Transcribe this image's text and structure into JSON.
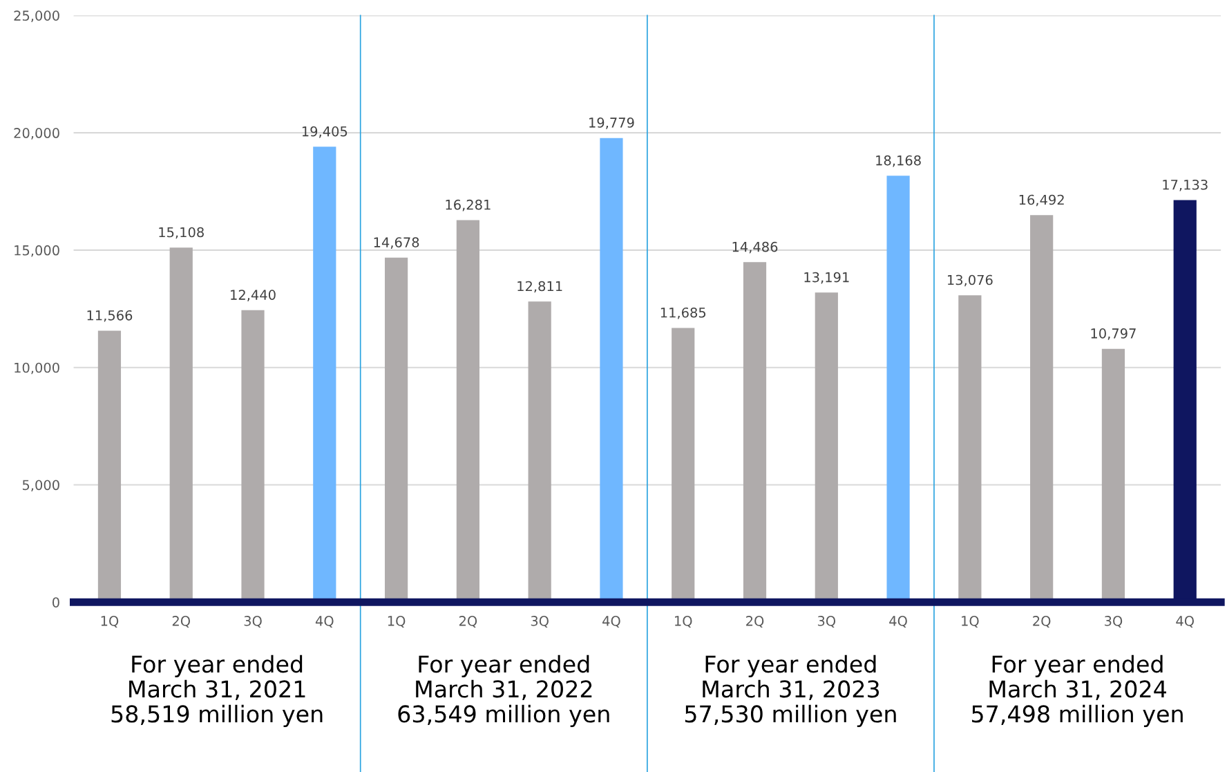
{
  "chart_data": {
    "type": "bar",
    "categories": [
      "1Q",
      "2Q",
      "3Q",
      "4Q",
      "1Q",
      "2Q",
      "3Q",
      "4Q",
      "1Q",
      "2Q",
      "3Q",
      "4Q",
      "1Q",
      "2Q",
      "3Q",
      "4Q"
    ],
    "values": [
      11566,
      15108,
      12440,
      19405,
      14678,
      16281,
      12811,
      19779,
      11685,
      14486,
      13191,
      18168,
      13076,
      16492,
      10797,
      17133
    ],
    "colors": [
      "#afabab",
      "#afabab",
      "#afabab",
      "#6fb7ff",
      "#afabab",
      "#afabab",
      "#afabab",
      "#6fb7ff",
      "#afabab",
      "#afabab",
      "#afabab",
      "#6fb7ff",
      "#afabab",
      "#afabab",
      "#afabab",
      "#0f1660"
    ],
    "ylim": [
      0,
      25000
    ],
    "yticks": [
      0,
      {
        "value": 5000,
        "label": "5,000"
      },
      {
        "value": 10000,
        "label": "10,000"
      },
      {
        "value": 15000,
        "label": "15,000"
      },
      {
        "value": 20000,
        "label": "20,000"
      },
      {
        "value": 25000,
        "label": "25,000"
      }
    ],
    "grid": "y",
    "value_labels": [
      "11,566",
      "15,108",
      "12,440",
      "19,405",
      "14,678",
      "16,281",
      "12,811",
      "19,779",
      "11,685",
      "14,486",
      "13,191",
      "18,168",
      "13,076",
      "16,492",
      "10,797",
      "17,133"
    ],
    "annotations": [
      "For year ended\nMarch 31, 2021\n58,519 million yen",
      "For year ended\nMarch 31, 2022\n63,549 million yen",
      "For year ended\nMarch 31, 2023\n57,530 million yen",
      "For year ended\nMarch 31, 2024\n57,498 million yen"
    ]
  }
}
